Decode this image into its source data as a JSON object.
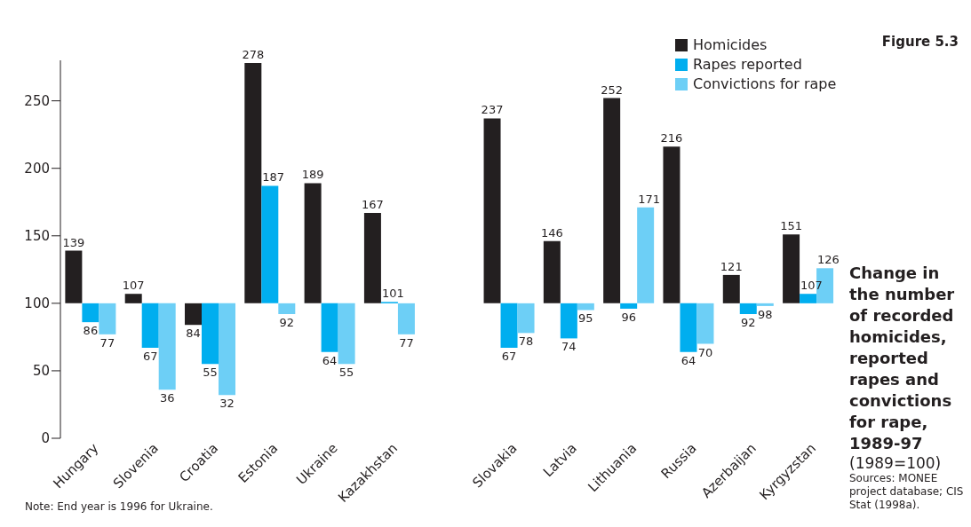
{
  "chart_data": {
    "type": "bar",
    "title": "Change in the number of recorded homicides, reported rapes and convictions for rape, 1989-97",
    "subtitle": "(1989=100)",
    "annotations": [
      "Figure 5.3",
      "Sources: MONEE project database; CIS Stat (1998a).",
      "Note: End year is 1996 for Ukraine."
    ],
    "categories": [
      "Hungary",
      "Slovenia",
      "Croatia",
      "Estonia",
      "Ukraine",
      "Kazakhstan",
      null,
      "Slovakia",
      "Latvia",
      "Lithuania",
      "Russia",
      "Azerbaijan",
      "Kyrgyzstan"
    ],
    "series": [
      {
        "name": "Homicides",
        "color": "#231f20",
        "base": [
          100,
          100,
          100,
          100,
          100,
          100,
          null,
          100,
          100,
          100,
          100,
          100,
          100
        ],
        "values": [
          39,
          7,
          -16,
          178,
          89,
          67,
          null,
          137,
          46,
          152,
          116,
          21,
          51
        ],
        "value_labels": [
          "139",
          "107",
          "84",
          "278",
          "189",
          "167",
          null,
          "237",
          "146",
          "252",
          "216",
          "121",
          "151"
        ]
      },
      {
        "name": "Rapes reported",
        "color": "#00aeef",
        "base": [
          100,
          100,
          100,
          100,
          100,
          100,
          null,
          100,
          100,
          100,
          100,
          100,
          100
        ],
        "values": [
          -14,
          -33,
          -45,
          87,
          -36,
          1,
          null,
          -33,
          -26,
          -4,
          -36,
          -8,
          7
        ],
        "value_labels": [
          "86",
          "67",
          "55",
          "187",
          "64",
          "101",
          null,
          "67",
          "74",
          "96",
          "64",
          "92",
          "107"
        ]
      },
      {
        "name": "Convictions for rape",
        "color": "#6dcff6",
        "base": [
          100,
          100,
          100,
          100,
          100,
          100,
          null,
          100,
          100,
          100,
          100,
          100,
          100
        ],
        "values": [
          -23,
          -64,
          -68,
          -8,
          -45,
          -23,
          null,
          -22,
          -5,
          71,
          -30,
          -2,
          26
        ],
        "value_labels": [
          "77",
          "36",
          "32",
          "92",
          "55",
          "77",
          null,
          "78",
          "95",
          "171",
          "70",
          "98",
          "126"
        ]
      }
    ],
    "ylim": [
      0,
      280
    ],
    "yticks": [
      0,
      50,
      100,
      150,
      200,
      250
    ],
    "legend": "top right"
  }
}
